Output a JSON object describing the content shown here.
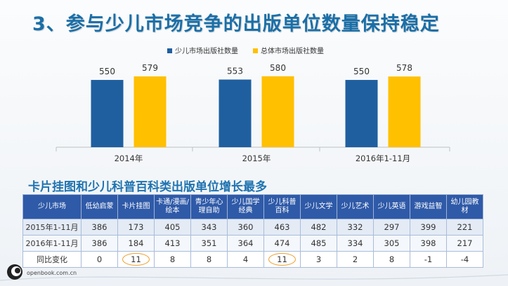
{
  "title": "3、参与少儿市场竞争的出版单位数量保持稳定",
  "subtitle": "卡片挂图和少儿科普百科类出版单位增长最多",
  "chart_data": {
    "type": "bar",
    "categories": [
      "2014年",
      "2015年",
      "2016年1-11月"
    ],
    "series": [
      {
        "name": "少儿市场出版社数量",
        "values": [
          550,
          553,
          550
        ],
        "color": "#1f5fa0"
      },
      {
        "name": "总体市场出版社数量",
        "values": [
          579,
          580,
          578
        ],
        "color": "#ffc000"
      }
    ],
    "legend_position": "top-right",
    "grid": false
  },
  "table": {
    "headers": [
      "少儿市场",
      "低幼启蒙",
      "卡片挂图",
      "卡通/漫画/绘本",
      "青少年心理自助",
      "少儿国学经典",
      "少儿科普百科",
      "少儿文学",
      "少儿艺术",
      "少儿英语",
      "游戏益智",
      "幼儿园教材"
    ],
    "rows": [
      [
        "2015年1-11月",
        "386",
        "173",
        "405",
        "343",
        "360",
        "463",
        "482",
        "332",
        "297",
        "399",
        "221"
      ],
      [
        "2016年1-11月",
        "386",
        "184",
        "413",
        "351",
        "364",
        "474",
        "485",
        "334",
        "305",
        "398",
        "217"
      ],
      [
        "同比变化",
        "0",
        "11",
        "8",
        "8",
        "4",
        "11",
        "3",
        "2",
        "8",
        "-1",
        "-4"
      ]
    ],
    "highlight_color": "#f0a030"
  },
  "footer": {
    "site": "openbook.com.cn"
  }
}
